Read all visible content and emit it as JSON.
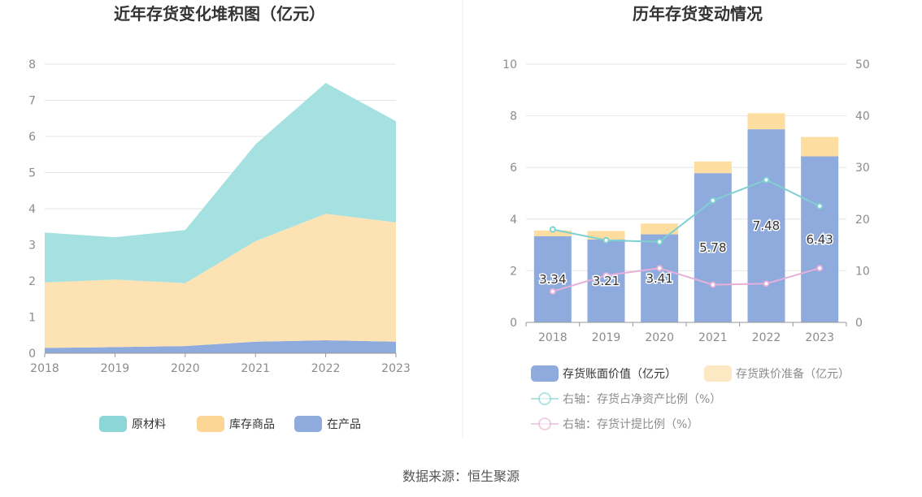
{
  "source_label": "数据来源：恒生聚源",
  "chart_data": [
    {
      "type": "area",
      "stacked": true,
      "title": "近年存货变化堆积图（亿元）",
      "categories": [
        "2018",
        "2019",
        "2020",
        "2021",
        "2022",
        "2023"
      ],
      "ylim": [
        0,
        8
      ],
      "yticks": [
        "0",
        "1",
        "2",
        "3",
        "4",
        "5",
        "6",
        "7",
        "8"
      ],
      "series": [
        {
          "name": "在产品",
          "color": "#8faadc",
          "values": [
            0.15,
            0.17,
            0.2,
            0.32,
            0.36,
            0.32
          ]
        },
        {
          "name": "库存商品",
          "color": "#fde3b3",
          "values": [
            1.81,
            1.87,
            1.74,
            2.78,
            3.5,
            3.3
          ]
        },
        {
          "name": "原材料",
          "color": "#a6e1e1",
          "values": [
            1.38,
            1.17,
            1.47,
            2.68,
            3.62,
            2.8
          ]
        }
      ],
      "legend": [
        "原材料",
        "库存商品",
        "在产品"
      ],
      "legend_colors": [
        "#8dd6d7",
        "#fdd595",
        "#8faadc"
      ]
    },
    {
      "type": "bar",
      "stacked": true,
      "title": "历年存货变动情况",
      "categories": [
        "2018",
        "2019",
        "2020",
        "2021",
        "2022",
        "2023"
      ],
      "ylim": [
        0,
        10
      ],
      "yticks": [
        "0",
        "2",
        "4",
        "6",
        "8",
        "10"
      ],
      "y2lim": [
        0,
        50
      ],
      "y2ticks": [
        "0",
        "10",
        "20",
        "30",
        "40",
        "50"
      ],
      "series": [
        {
          "name": "存货账面价值（亿元）",
          "color": "#8faadc",
          "values": [
            3.34,
            3.21,
            3.41,
            5.78,
            7.48,
            6.43
          ],
          "data_labels": [
            "3.34",
            "3.21",
            "3.41",
            "5.78",
            "7.48",
            "6.43"
          ]
        },
        {
          "name": "存货跌价准备（亿元）",
          "color": "#fddda0",
          "values": [
            0.22,
            0.33,
            0.42,
            0.45,
            0.62,
            0.75
          ]
        }
      ],
      "lines": [
        {
          "name": "右轴：存货占净资产比例（%）",
          "color": "#7fd1d1",
          "axis": "right",
          "values": [
            18,
            15.9,
            15.6,
            23.6,
            27.6,
            22.5
          ]
        },
        {
          "name": "右轴：存货计提比例（%）",
          "color": "#e6b0d9",
          "axis": "right",
          "values": [
            6.0,
            9.1,
            10.5,
            7.3,
            7.5,
            10.5
          ]
        }
      ]
    }
  ]
}
